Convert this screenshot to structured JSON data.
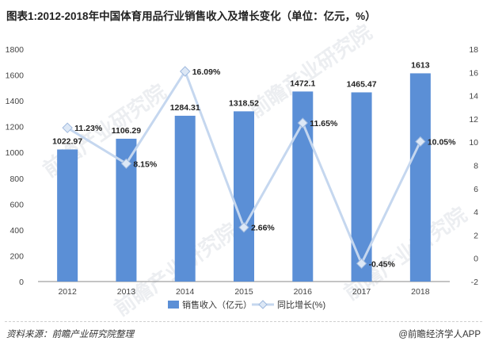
{
  "title": "图表1:2012-2018年中国体育用品行业销售收入及增长变化（单位：亿元，%）",
  "watermark": "前瞻产业研究院",
  "footer": {
    "source": "资料来源：前瞻产业研究院整理",
    "brand": "@前瞻经济学人APP"
  },
  "colors": {
    "bar": "#5b8fd6",
    "line": "#c5d7ef",
    "marker": "#c5d7ef",
    "axis": "#888888"
  },
  "chart_data": {
    "type": "bar",
    "categories": [
      "2012",
      "2013",
      "2014",
      "2015",
      "2016",
      "2017",
      "2018"
    ],
    "series": [
      {
        "name": "销售收入（亿元）",
        "type": "bar",
        "axis": "left",
        "values": [
          1022.97,
          1106.29,
          1284.31,
          1318.52,
          1472.1,
          1465.47,
          1613
        ],
        "labels": [
          "1022.97",
          "1106.29",
          "1284.31",
          "1318.52",
          "1472.1",
          "1465.47",
          "1613"
        ]
      },
      {
        "name": "同比增长(%)",
        "type": "line",
        "axis": "right",
        "values": [
          11.23,
          8.15,
          16.09,
          2.66,
          11.65,
          -0.45,
          10.05
        ],
        "labels": [
          "11.23%",
          "8.15%",
          "16.09%",
          "2.66%",
          "11.65%",
          "-0.45%",
          "10.05%"
        ]
      }
    ],
    "y_left": {
      "lim": [
        0,
        1800
      ],
      "ticks": [
        0,
        200,
        400,
        600,
        800,
        1000,
        1200,
        1400,
        1600,
        1800
      ]
    },
    "y_right": {
      "lim": [
        -2,
        18
      ],
      "ticks": [
        -2,
        0,
        2,
        4,
        6,
        8,
        10,
        12,
        14,
        16,
        18
      ]
    },
    "legend_position": "bottom",
    "grid": false
  }
}
